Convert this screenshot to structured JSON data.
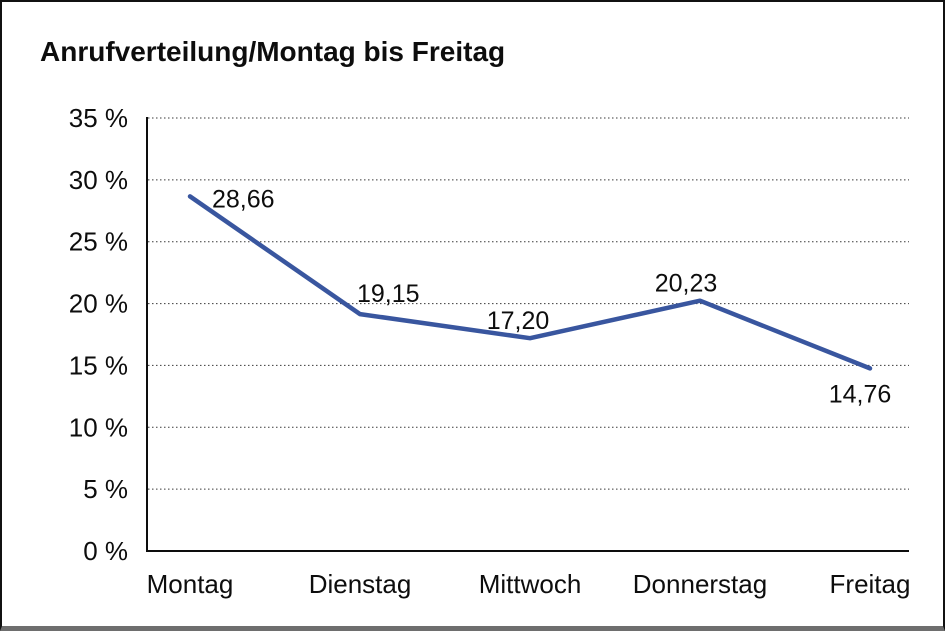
{
  "header": {
    "title": "Anrufverteilung/Montag bis Freitag"
  },
  "chart_data": {
    "type": "line",
    "title": "Anrufverteilung/Montag bis Freitag",
    "categories": [
      "Montag",
      "Dienstag",
      "Mittwoch",
      "Donnerstag",
      "Freitag"
    ],
    "series": [
      {
        "values": [
          28.66,
          19.15,
          17.2,
          20.23,
          14.76
        ],
        "point_labels": [
          "28,66",
          "19,15",
          "17,20",
          "20,23",
          "14,76"
        ]
      }
    ],
    "ylim": [
      0,
      35
    ],
    "ytick_step": 5,
    "ytick_labels": [
      "0 %",
      "5 %",
      "10 %",
      "15 %",
      "20 %",
      "25 %",
      "30 %",
      "35 %"
    ],
    "grid": "horizontal-dotted",
    "legend": "none",
    "colors": {
      "line": "#39569F",
      "grid": "#3a3a3a",
      "axis": "#0d0d0d",
      "text": "#0d0d0d",
      "background": "#ffffff"
    }
  }
}
